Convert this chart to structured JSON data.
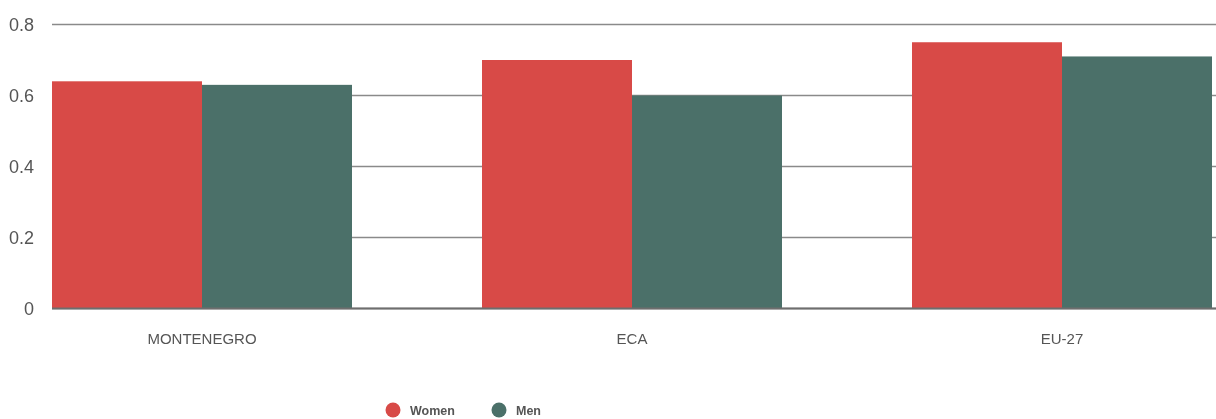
{
  "chart_data": {
    "type": "bar",
    "categories": [
      "MONTENEGRO",
      "ECA",
      "EU-27"
    ],
    "series": [
      {
        "name": "Women",
        "color": "#d84a47",
        "values": [
          0.64,
          0.7,
          0.75
        ]
      },
      {
        "name": "Men",
        "color": "#4b7069",
        "values": [
          0.63,
          0.6,
          0.71
        ]
      }
    ],
    "ylim": [
      0,
      0.8
    ],
    "yticks": [
      0,
      0.2,
      0.4,
      0.6,
      0.8
    ],
    "grid": "y",
    "legend": "bottom"
  }
}
